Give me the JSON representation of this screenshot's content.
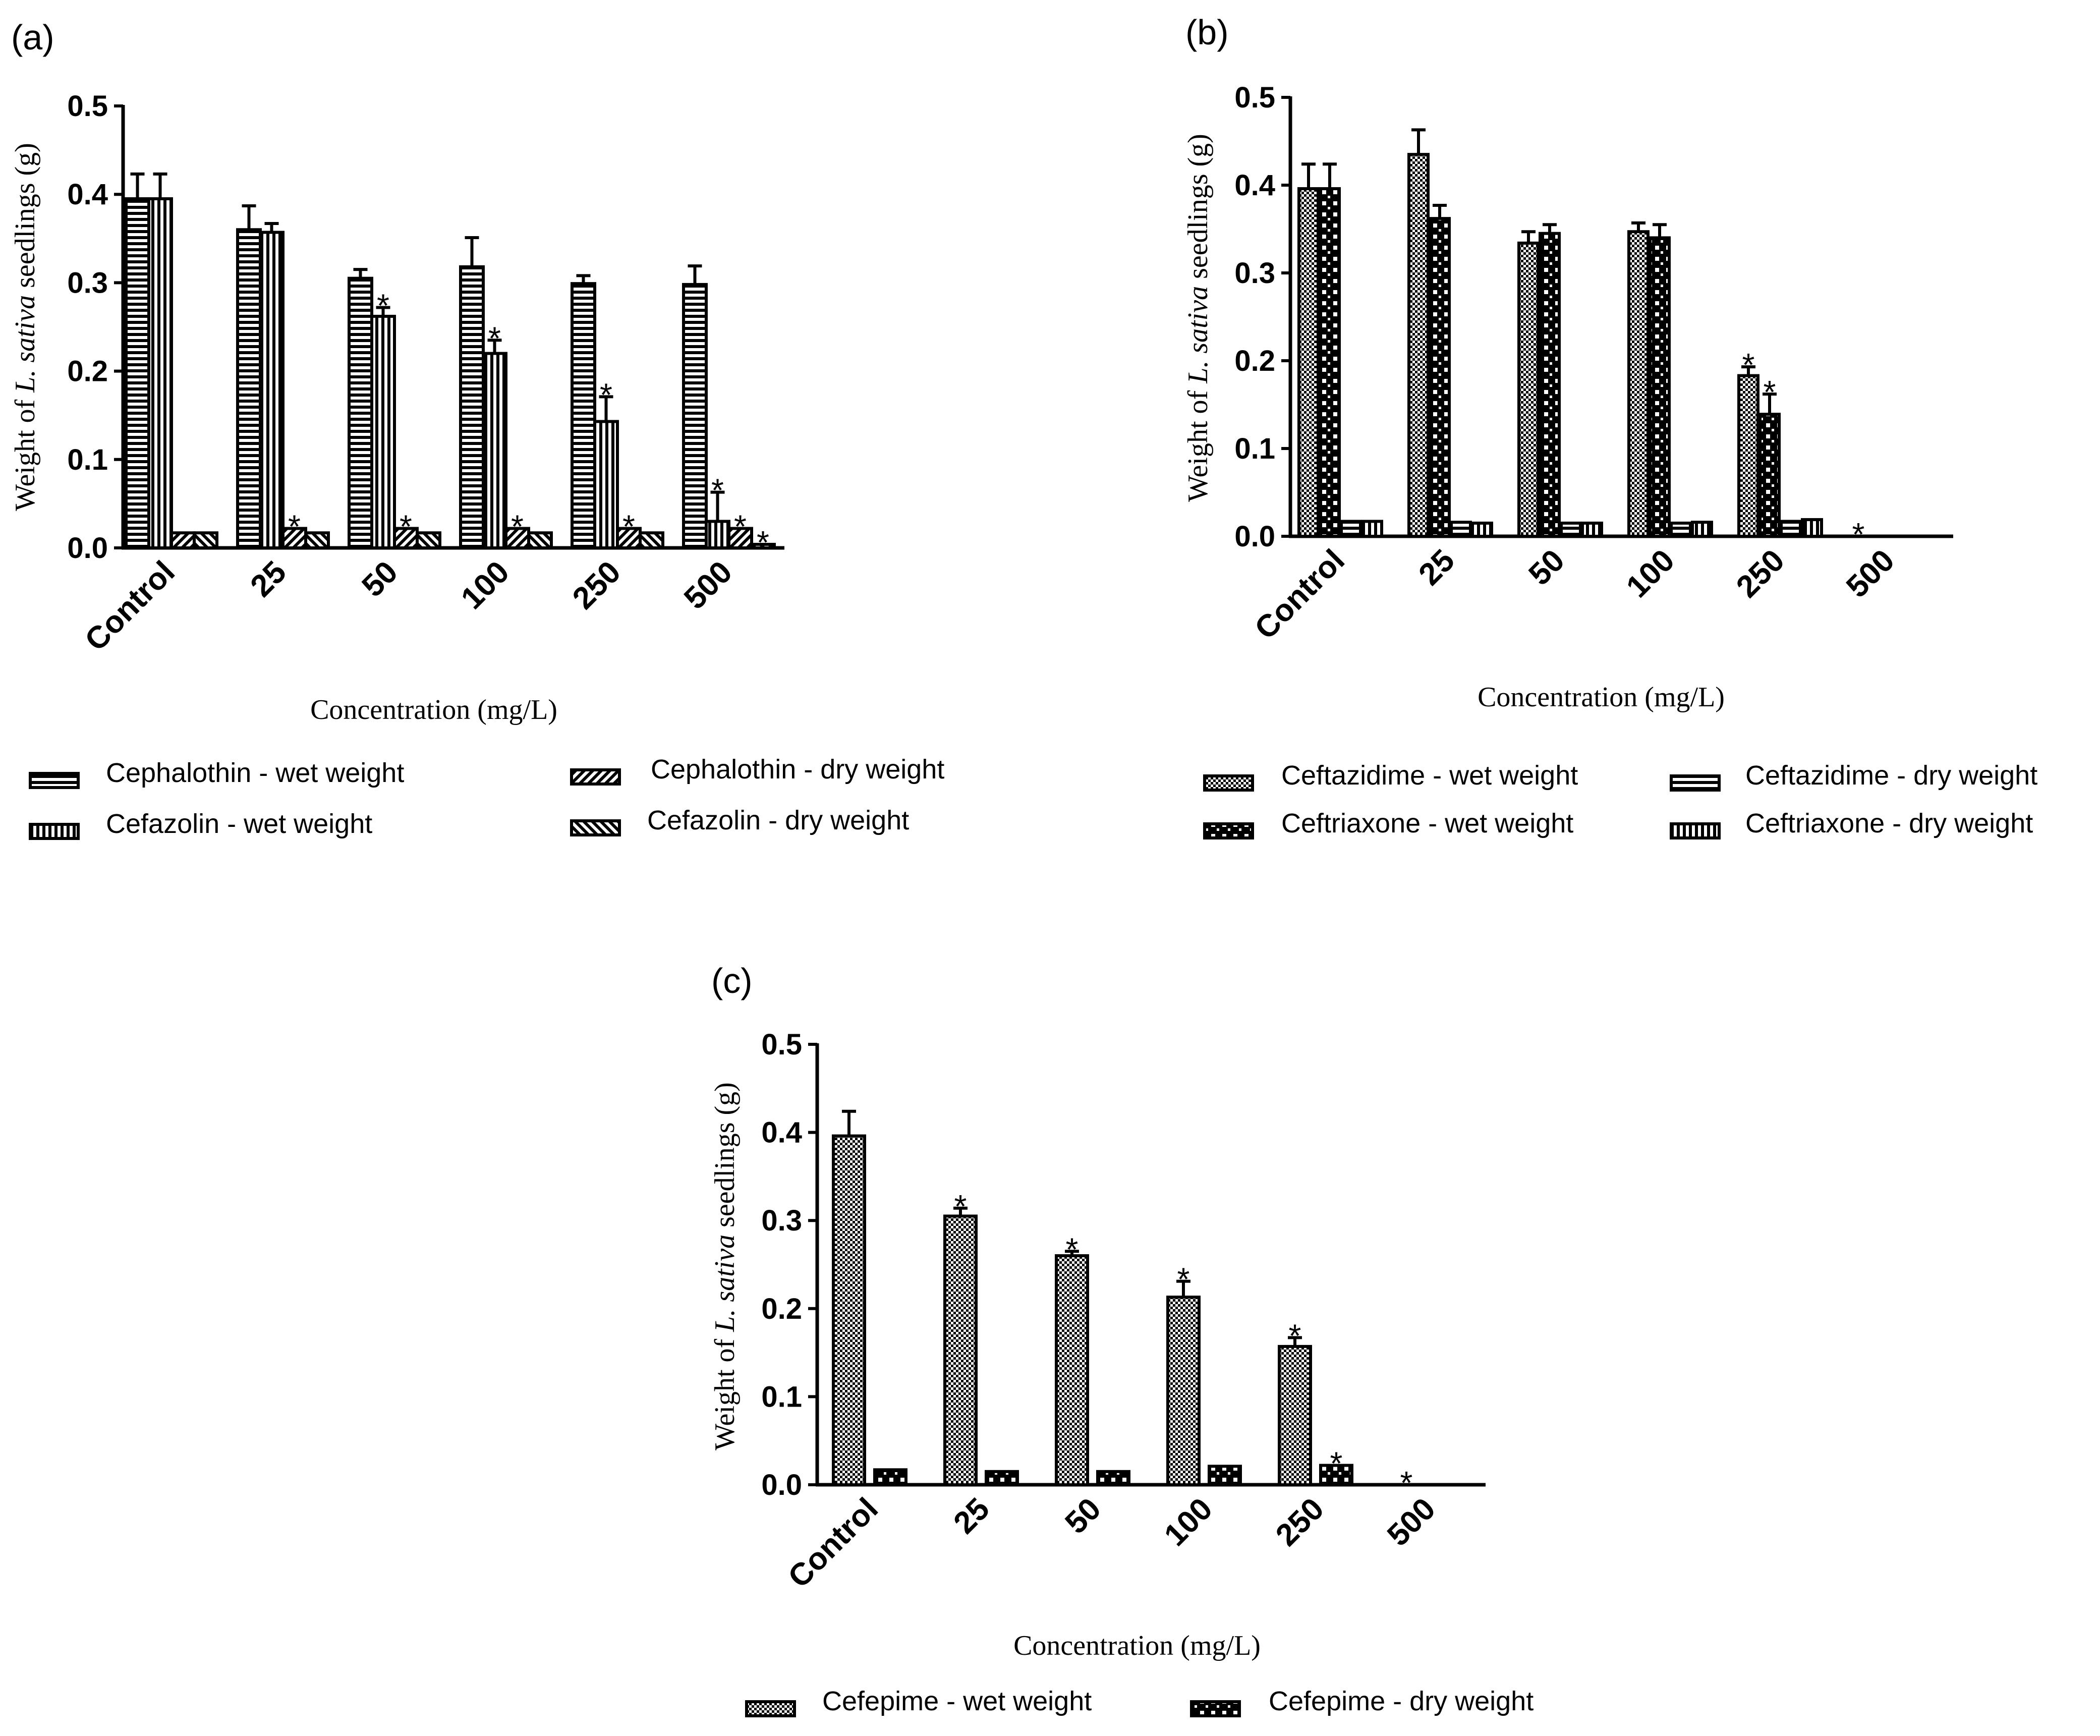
{
  "panels": [
    {
      "label": "(a)",
      "ylabel_parts": [
        "Weight of ",
        "L. sativa",
        " seedlings (g)"
      ],
      "xlabel": "Concentration (mg/L)",
      "yticks": [
        "0.0",
        "0.1",
        "0.2",
        "0.3",
        "0.4",
        "0.5"
      ],
      "legend": [
        "Cephalothin - wet weight",
        "Cephalothin - dry weight",
        "Cefazolin - wet weight",
        "Cefazolin - dry weight"
      ]
    },
    {
      "label": "(b)",
      "ylabel_parts": [
        "Weight of ",
        "L. sativa",
        " seedlings (g)"
      ],
      "xlabel": "Concentration (mg/L)",
      "yticks": [
        "0.0",
        "0.1",
        "0.2",
        "0.3",
        "0.4",
        "0.5"
      ],
      "legend": [
        "Ceftazidime - wet weight",
        "Ceftazidime - dry weight",
        "Ceftriaxone - wet weight",
        "Ceftriaxone - dry weight"
      ]
    },
    {
      "label": "(c)",
      "ylabel_parts": [
        "Weight of ",
        "L. sativa",
        " seedlings (g)"
      ],
      "xlabel": "Concentration (mg/L)",
      "yticks": [
        "0.0",
        "0.1",
        "0.2",
        "0.3",
        "0.4",
        "0.5"
      ],
      "legend": [
        "Cefepime - wet weight",
        "Cefepime - dry weight"
      ]
    }
  ],
  "chart_data": [
    {
      "type": "bar",
      "panel": "(a)",
      "title": "",
      "xlabel": "Concentration (mg/L)",
      "ylabel": "Weight of L. sativa seedlings (g)",
      "ylim": [
        0,
        0.5
      ],
      "categories": [
        "Control",
        "25",
        "50",
        "100",
        "250",
        "500"
      ],
      "series": [
        {
          "name": "Cephalothin - wet weight",
          "pattern": "hstripe",
          "values": [
            0.395,
            0.36,
            0.305,
            0.318,
            0.299,
            0.298
          ],
          "errors": [
            0.028,
            0.027,
            0.01,
            0.033,
            0.009,
            0.021
          ],
          "significant": [
            false,
            false,
            false,
            false,
            false,
            false
          ]
        },
        {
          "name": "Cefazolin - wet weight",
          "pattern": "vstripe",
          "values": [
            0.395,
            0.357,
            0.262,
            0.22,
            0.143,
            0.03
          ],
          "errors": [
            0.028,
            0.01,
            0.01,
            0.015,
            0.028,
            0.033
          ],
          "significant": [
            false,
            false,
            true,
            true,
            true,
            true
          ]
        },
        {
          "name": "Cephalothin - dry weight",
          "pattern": "diagfwd",
          "values": [
            0.017,
            0.022,
            0.022,
            0.022,
            0.022,
            0.022
          ],
          "errors": [
            0,
            0,
            0,
            0,
            0,
            0
          ],
          "significant": [
            false,
            true,
            true,
            true,
            true,
            true
          ]
        },
        {
          "name": "Cefazolin - dry weight",
          "pattern": "diagback",
          "values": [
            0.017,
            0.017,
            0.017,
            0.017,
            0.017,
            0.004
          ],
          "errors": [
            0,
            0,
            0,
            0,
            0,
            0
          ],
          "significant": [
            false,
            false,
            false,
            false,
            false,
            true
          ]
        }
      ],
      "annotation_symbol": "*"
    },
    {
      "type": "bar",
      "panel": "(b)",
      "title": "",
      "xlabel": "Concentration (mg/L)",
      "ylabel": "Weight of L. sativa seedlings (g)",
      "ylim": [
        0,
        0.5
      ],
      "categories": [
        "Control",
        "25",
        "50",
        "100",
        "250",
        "500"
      ],
      "series": [
        {
          "name": "Ceftazidime - wet weight",
          "pattern": "check",
          "values": [
            0.396,
            0.435,
            0.334,
            0.347,
            0.183,
            0
          ],
          "errors": [
            0.028,
            0.028,
            0.013,
            0.01,
            0.01,
            0
          ],
          "significant": [
            false,
            false,
            false,
            false,
            true,
            true
          ]
        },
        {
          "name": "Ceftriaxone - wet weight",
          "pattern": "bigcheck",
          "values": [
            0.396,
            0.362,
            0.345,
            0.34,
            0.139,
            0
          ],
          "errors": [
            0.028,
            0.015,
            0.01,
            0.015,
            0.023,
            0
          ],
          "significant": [
            false,
            false,
            false,
            false,
            true,
            false
          ]
        },
        {
          "name": "Ceftazidime - dry weight",
          "pattern": "hstripe",
          "values": [
            0.017,
            0.016,
            0.015,
            0.015,
            0.017,
            0
          ],
          "errors": [
            0,
            0,
            0,
            0,
            0,
            0
          ],
          "significant": [
            false,
            false,
            false,
            false,
            false,
            false
          ]
        },
        {
          "name": "Ceftriaxone - dry weight",
          "pattern": "vstripe",
          "values": [
            0.017,
            0.015,
            0.015,
            0.016,
            0.019,
            0
          ],
          "errors": [
            0,
            0,
            0,
            0,
            0,
            0
          ],
          "significant": [
            false,
            false,
            false,
            false,
            false,
            false
          ]
        }
      ],
      "annotation_symbol": "*"
    },
    {
      "type": "bar",
      "panel": "(c)",
      "title": "",
      "xlabel": "Concentration (mg/L)",
      "ylabel": "Weight of L. sativa seedlings (g)",
      "ylim": [
        0,
        0.5
      ],
      "categories": [
        "Control",
        "25",
        "50",
        "100",
        "250",
        "500"
      ],
      "series": [
        {
          "name": "Cefepime - wet weight",
          "pattern": "check",
          "values": [
            0.396,
            0.305,
            0.26,
            0.213,
            0.157,
            0
          ],
          "errors": [
            0.028,
            0.009,
            0.005,
            0.018,
            0.01,
            0
          ],
          "significant": [
            false,
            true,
            true,
            true,
            true,
            true
          ]
        },
        {
          "name": "Cefepime - dry weight",
          "pattern": "bigcheck",
          "values": [
            0.017,
            0.015,
            0.015,
            0.021,
            0.022,
            0
          ],
          "errors": [
            0,
            0,
            0,
            0,
            0,
            0
          ],
          "significant": [
            false,
            false,
            false,
            false,
            true,
            false
          ]
        }
      ],
      "annotation_symbol": "*"
    }
  ]
}
